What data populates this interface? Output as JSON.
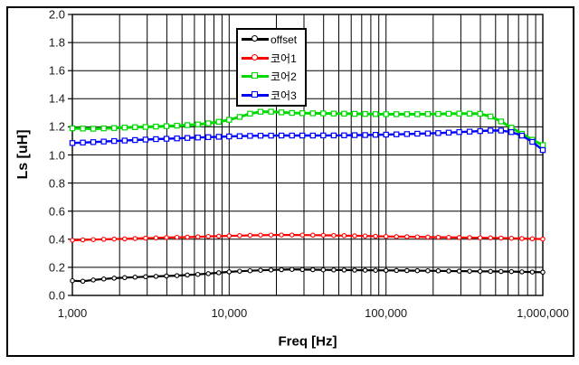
{
  "chart_data": {
    "type": "line",
    "x_scale": "log",
    "x_range": [
      1000,
      1000000
    ],
    "y_range": [
      0.0,
      2.0
    ],
    "y_tick_step": 0.2,
    "xlabel": "Freq [Hz]",
    "ylabel": "Ls [uH]",
    "grid": "major horizontal every 0.2; vertical log decades with minor lines 2-9",
    "legend_position": "top-center-inside",
    "x_ticks": [
      1000,
      10000,
      100000,
      1000000
    ],
    "x_tick_labels": [
      "1,000",
      "10,000",
      "100,000",
      "1,000,000"
    ],
    "y_tick_labels": [
      "0.0",
      "0.2",
      "0.4",
      "0.6",
      "0.8",
      "1.0",
      "1.2",
      "1.4",
      "1.6",
      "1.8",
      "2.0"
    ],
    "markers_per_series": 46,
    "series": [
      {
        "name": "offset",
        "color": "#000000",
        "marker": "circle",
        "line_width": 2.2,
        "x": [
          1000,
          1150,
          1400,
          1800,
          2500,
          3300,
          4500,
          6000,
          8000,
          10000,
          13000,
          17000,
          25000,
          40000,
          60000,
          100000,
          200000,
          350000,
          600000,
          1000000
        ],
        "y": [
          0.105,
          0.1,
          0.112,
          0.122,
          0.13,
          0.135,
          0.14,
          0.148,
          0.158,
          0.168,
          0.175,
          0.18,
          0.185,
          0.182,
          0.18,
          0.178,
          0.175,
          0.172,
          0.17,
          0.165
        ]
      },
      {
        "name": "코어1",
        "color": "#FF0000",
        "marker": "circle",
        "line_width": 2.2,
        "x": [
          1000,
          1300,
          1700,
          2200,
          3000,
          4000,
          5500,
          7500,
          10000,
          14000,
          20000,
          28000,
          40000,
          60000,
          90000,
          130000,
          200000,
          300000,
          450000,
          650000,
          1000000
        ],
        "y": [
          0.393,
          0.397,
          0.4,
          0.403,
          0.408,
          0.412,
          0.415,
          0.42,
          0.424,
          0.428,
          0.43,
          0.43,
          0.428,
          0.425,
          0.421,
          0.418,
          0.415,
          0.412,
          0.41,
          0.407,
          0.401
        ]
      },
      {
        "name": "코어2",
        "color": "#00D900",
        "marker": "square",
        "line_width": 3,
        "x": [
          1000,
          1300,
          1700,
          2200,
          3000,
          4000,
          5000,
          6500,
          8000,
          10000,
          12000,
          14000,
          16000,
          19000,
          23000,
          30000,
          45000,
          70000,
          100000,
          150000,
          220000,
          300000,
          400000,
          480000,
          560000,
          650000,
          750000,
          850000,
          920000,
          1000000
        ],
        "y": [
          1.19,
          1.186,
          1.19,
          1.195,
          1.2,
          1.205,
          1.21,
          1.218,
          1.23,
          1.25,
          1.275,
          1.298,
          1.308,
          1.308,
          1.3,
          1.297,
          1.295,
          1.292,
          1.29,
          1.29,
          1.292,
          1.295,
          1.293,
          1.27,
          1.23,
          1.185,
          1.145,
          1.11,
          1.09,
          1.07
        ]
      },
      {
        "name": "코어3",
        "color": "#0000FF",
        "marker": "square",
        "line_width": 2.4,
        "x": [
          1000,
          1300,
          1700,
          2200,
          3000,
          4500,
          6000,
          8000,
          10000,
          14000,
          20000,
          30000,
          45000,
          70000,
          100000,
          150000,
          220000,
          300000,
          400000,
          500000,
          580000,
          680000,
          780000,
          880000,
          1000000
        ],
        "y": [
          1.085,
          1.09,
          1.097,
          1.103,
          1.11,
          1.117,
          1.123,
          1.128,
          1.132,
          1.136,
          1.138,
          1.138,
          1.139,
          1.141,
          1.145,
          1.15,
          1.156,
          1.163,
          1.17,
          1.175,
          1.172,
          1.155,
          1.125,
          1.085,
          1.035
        ]
      }
    ]
  },
  "legend": {
    "entries": [
      {
        "label": "offset"
      },
      {
        "label": "코어1"
      },
      {
        "label": "코어2"
      },
      {
        "label": "코어3"
      }
    ]
  },
  "colors": {
    "grid": "#000000",
    "plot_border": "#000000",
    "background": "#FFFFFF",
    "tick_text": "#1a1a1a"
  }
}
